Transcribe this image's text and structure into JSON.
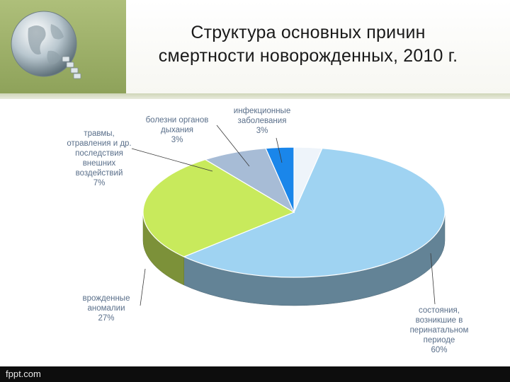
{
  "slide": {
    "title_line1": "Структура основных причин",
    "title_line2": "смертности новорожденных, 2010 г.",
    "footer": "fppt.com"
  },
  "chart_data": {
    "type": "pie",
    "title": "Структура основных причин смертности новорожденных, 2010 г.",
    "slices": [
      {
        "name": "инфекционные заболевания",
        "label_lines": [
          "инфекционные",
          "заболевания"
        ],
        "value": 3,
        "value_label": "3%",
        "color": "#eef4fa"
      },
      {
        "name": "состояния, возникшие в перинатальном периоде",
        "label_lines": [
          "состояния,",
          "возникшие в",
          "перинатальном",
          "периоде"
        ],
        "value": 60,
        "value_label": "60%",
        "color": "#9fd3f2"
      },
      {
        "name": "врожденные аномалии",
        "label_lines": [
          "врожденные",
          "аномалии"
        ],
        "value": 27,
        "value_label": "27%",
        "color": "#c8ea5c"
      },
      {
        "name": "травмы, отравления и др. последствия внешних воздействий",
        "label_lines": [
          "травмы,",
          "отравления и др.",
          "последствия",
          "внешних",
          "воздействий"
        ],
        "value": 7,
        "value_label": "7%",
        "color": "#a7bcd6"
      },
      {
        "name": "болезни органов дыхания",
        "label_lines": [
          "болезни органов",
          "дыхания"
        ],
        "value": 3,
        "value_label": "3%",
        "color": "#1a86ea"
      }
    ]
  }
}
